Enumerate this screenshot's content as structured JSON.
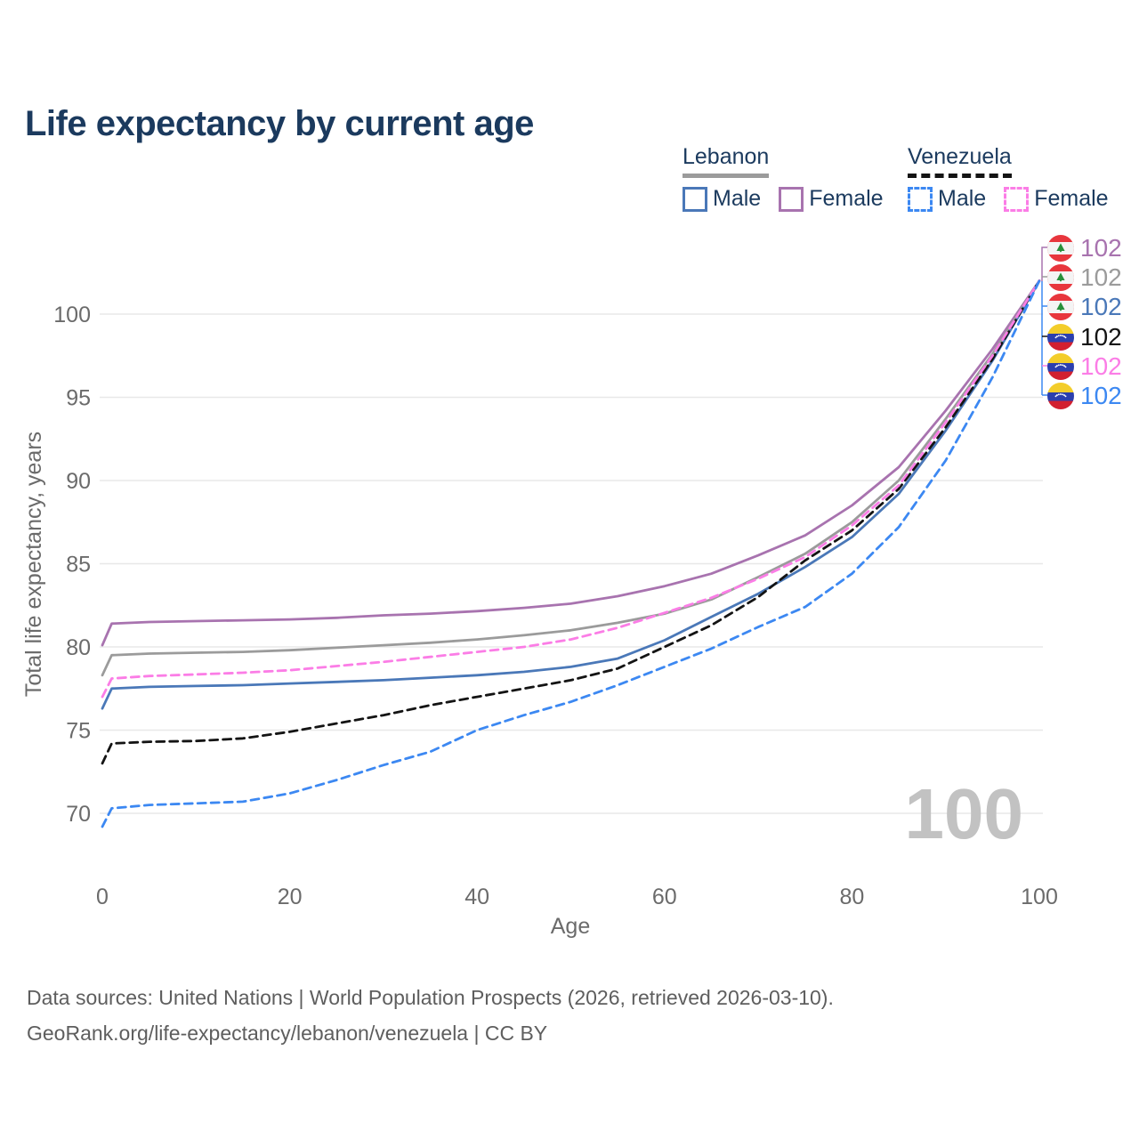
{
  "title": "Life expectancy by current age",
  "colors": {
    "title_text": "#1b3a5e",
    "legend_text": "#1b3a5e",
    "axis_text": "#6b6b6b",
    "grid": "#e8e8e8",
    "watermark": "#c2c2c2",
    "footer_text": "#5e5e5e",
    "lebanon_female": "#a873af",
    "lebanon_total": "#9b9b9b",
    "lebanon_male": "#4a78b8",
    "venezuela_total": "#141414",
    "venezuela_female": "#fb7de6",
    "venezuela_male": "#3c88f2"
  },
  "legend": {
    "lebanon": {
      "title": "Lebanon",
      "male": "Male",
      "female": "Female"
    },
    "venezuela": {
      "title": "Venezuela",
      "male": "Male",
      "female": "Female"
    }
  },
  "watermark": "100",
  "end_labels": [
    {
      "flag": "lebanon",
      "value": "102",
      "series": "lebanon_female"
    },
    {
      "flag": "lebanon",
      "value": "102",
      "series": "lebanon_total"
    },
    {
      "flag": "lebanon",
      "value": "102",
      "series": "lebanon_male"
    },
    {
      "flag": "venezuela",
      "value": "102",
      "series": "venezuela_total"
    },
    {
      "flag": "venezuela",
      "value": "102",
      "series": "venezuela_female"
    },
    {
      "flag": "venezuela",
      "value": "102",
      "series": "venezuela_male"
    }
  ],
  "footer": {
    "line1": "Data sources: United Nations | World Population Prospects (2026, retrieved 2026-03-10).",
    "line2": "GeoRank.org/life-expectancy/lebanon/venezuela | CC BY"
  },
  "chart_data": {
    "type": "line",
    "title": "Life expectancy by current age",
    "xlabel": "Age",
    "ylabel": "Total life expectancy, years",
    "xlim": [
      0,
      100
    ],
    "ylim": [
      67,
      103
    ],
    "x_ticks": [
      0,
      20,
      40,
      60,
      80,
      100
    ],
    "y_ticks": [
      70,
      75,
      80,
      85,
      90,
      95,
      100
    ],
    "grid": "horizontal",
    "legend_position": "top-right",
    "x": [
      0,
      1,
      5,
      10,
      15,
      20,
      25,
      30,
      35,
      40,
      45,
      50,
      55,
      60,
      65,
      70,
      75,
      80,
      85,
      90,
      95,
      100
    ],
    "series": [
      {
        "name": "Lebanon Female",
        "color_key": "lebanon_female",
        "dash": false,
        "values": [
          80.1,
          81.4,
          81.5,
          81.55,
          81.6,
          81.65,
          81.75,
          81.9,
          82.0,
          82.15,
          82.35,
          82.6,
          83.05,
          83.65,
          84.4,
          85.5,
          86.7,
          88.5,
          90.8,
          94.2,
          97.9,
          102
        ]
      },
      {
        "name": "Lebanon",
        "color_key": "lebanon_total",
        "dash": false,
        "values": [
          78.3,
          79.5,
          79.6,
          79.65,
          79.7,
          79.8,
          79.95,
          80.1,
          80.25,
          80.45,
          80.7,
          81.0,
          81.45,
          82.0,
          82.85,
          84.2,
          85.6,
          87.5,
          90.0,
          93.7,
          97.6,
          102
        ]
      },
      {
        "name": "Lebanon Male",
        "color_key": "lebanon_male",
        "dash": false,
        "values": [
          76.3,
          77.5,
          77.6,
          77.65,
          77.7,
          77.8,
          77.9,
          78.0,
          78.15,
          78.3,
          78.5,
          78.8,
          79.3,
          80.4,
          81.8,
          83.2,
          84.8,
          86.6,
          89.2,
          93.0,
          97.2,
          102
        ]
      },
      {
        "name": "Venezuela",
        "color_key": "venezuela_total",
        "dash": true,
        "values": [
          73.0,
          74.2,
          74.3,
          74.35,
          74.5,
          74.9,
          75.4,
          75.9,
          76.5,
          77.0,
          77.5,
          78.0,
          78.7,
          80.0,
          81.3,
          83.0,
          85.2,
          87.0,
          89.5,
          93.2,
          97.3,
          102
        ]
      },
      {
        "name": "Venezuela Female",
        "color_key": "venezuela_female",
        "dash": true,
        "values": [
          77.0,
          78.1,
          78.25,
          78.35,
          78.45,
          78.6,
          78.85,
          79.1,
          79.4,
          79.7,
          80.0,
          80.45,
          81.15,
          82.05,
          82.95,
          84.1,
          85.4,
          87.3,
          89.7,
          93.5,
          97.5,
          102
        ]
      },
      {
        "name": "Venezuela Male",
        "color_key": "venezuela_male",
        "dash": true,
        "values": [
          69.2,
          70.3,
          70.5,
          70.6,
          70.7,
          71.2,
          72.0,
          72.9,
          73.7,
          75.0,
          75.9,
          76.7,
          77.7,
          78.8,
          79.9,
          81.2,
          82.4,
          84.4,
          87.2,
          91.2,
          96.2,
          102
        ]
      }
    ],
    "end_value_labels": [
      102,
      102,
      102,
      102,
      102,
      102
    ]
  }
}
